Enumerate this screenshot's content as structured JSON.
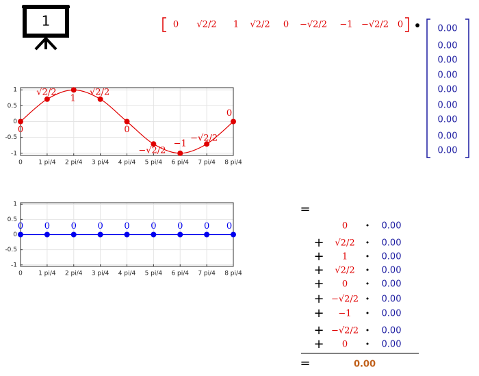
{
  "icon_label": "1",
  "row_vector": {
    "labels": [
      "0",
      "√2/2",
      "1",
      "√2/2",
      "0",
      "−√2/2",
      "−1",
      "−√2/2",
      "0"
    ]
  },
  "dot": "•",
  "column_vector": {
    "values": [
      0,
      0,
      0,
      0,
      0,
      0,
      0,
      0,
      0
    ],
    "value_labels": [
      "0.00",
      "0.00",
      "0.00",
      "0.00",
      "0.00",
      "0.00",
      "0.00",
      "0.00",
      "0.00"
    ]
  },
  "chart_data": [
    {
      "type": "line",
      "x": [
        0,
        1,
        2,
        3,
        4,
        5,
        6,
        7,
        8
      ],
      "values": [
        0,
        0.707,
        1,
        0.707,
        0,
        -0.707,
        -1,
        -0.707,
        0
      ],
      "value_labels": [
        "0",
        "√2/2",
        "1",
        "√2/2",
        "0",
        "−√2/2",
        "−1",
        "−√2/2",
        "0"
      ],
      "color": "#e00000",
      "xlim": [
        0,
        8
      ],
      "xticks": [
        0,
        {
          "value": 1,
          "label": "1 pi/4"
        },
        {
          "value": 2,
          "label": "2 pi/4"
        },
        {
          "value": 3,
          "label": "3 pi/4"
        },
        {
          "value": 4,
          "label": "4 pi/4"
        },
        {
          "value": 5,
          "label": "5 pi/4"
        },
        {
          "value": 6,
          "label": "6 pi/4"
        },
        {
          "value": 7,
          "label": "7 pi/4"
        },
        {
          "value": 8,
          "label": "8 pi/4"
        }
      ],
      "ylim": [
        -1.07,
        1.07
      ],
      "yticks": [
        1,
        0.5,
        0,
        -0.5,
        -1
      ],
      "grid": true
    },
    {
      "type": "line",
      "x": [
        0,
        1,
        2,
        3,
        4,
        5,
        6,
        7,
        8
      ],
      "values": [
        0,
        0,
        0,
        0,
        0,
        0,
        0,
        0,
        0
      ],
      "value_labels": [
        "0",
        "0",
        "0",
        "0",
        "0",
        "0",
        "0",
        "0",
        "0"
      ],
      "color": "#0000ee",
      "xlim": [
        0,
        8
      ],
      "xticks": [
        0,
        {
          "value": 1,
          "label": "1 pi/4"
        },
        {
          "value": 2,
          "label": "2 pi/4"
        },
        {
          "value": 3,
          "label": "3 pi/4"
        },
        {
          "value": 4,
          "label": "4 pi/4"
        },
        {
          "value": 5,
          "label": "5 pi/4"
        },
        {
          "value": 6,
          "label": "6 pi/4"
        },
        {
          "value": 7,
          "label": "7 pi/4"
        },
        {
          "value": 8,
          "label": "8 pi/4"
        }
      ],
      "ylim": [
        -1.05,
        1.05
      ],
      "yticks": [
        1,
        0.5,
        0,
        -0.5,
        -1
      ],
      "grid": true
    }
  ],
  "equals": "=",
  "plus": "+",
  "result": {
    "value": 0,
    "label": "0.00"
  }
}
